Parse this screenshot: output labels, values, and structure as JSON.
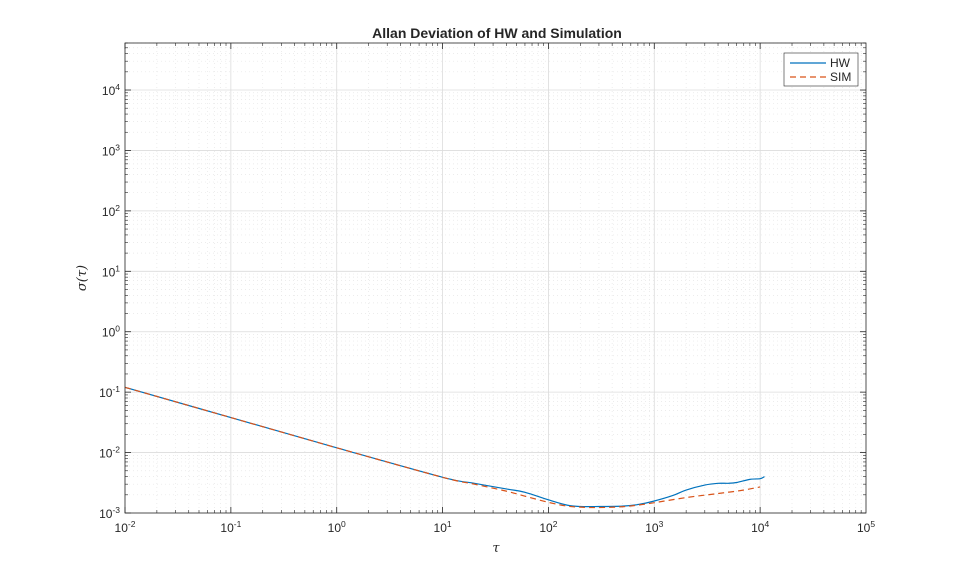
{
  "chart_data": {
    "type": "line",
    "title": "Allan Deviation of HW and Simulation",
    "xlabel": "τ",
    "ylabel": "σ(τ)",
    "xscale": "log",
    "yscale": "log",
    "xlim": [
      0.01,
      100000
    ],
    "ylim": [
      0.001,
      60000
    ],
    "grid": true,
    "minor_grid": true,
    "legend_position": "top-right",
    "x_ticks": [
      {
        "base": "10",
        "exp": "-2",
        "value": 0.01
      },
      {
        "base": "10",
        "exp": "-1",
        "value": 0.1
      },
      {
        "base": "10",
        "exp": "0",
        "value": 1
      },
      {
        "base": "10",
        "exp": "1",
        "value": 10
      },
      {
        "base": "10",
        "exp": "2",
        "value": 100
      },
      {
        "base": "10",
        "exp": "3",
        "value": 1000
      },
      {
        "base": "10",
        "exp": "4",
        "value": 10000
      },
      {
        "base": "10",
        "exp": "5",
        "value": 100000
      }
    ],
    "y_ticks": [
      {
        "base": "10",
        "exp": "-3",
        "value": 0.001
      },
      {
        "base": "10",
        "exp": "-2",
        "value": 0.01
      },
      {
        "base": "10",
        "exp": "-1",
        "value": 0.1
      },
      {
        "base": "10",
        "exp": "0",
        "value": 1
      },
      {
        "base": "10",
        "exp": "1",
        "value": 10
      },
      {
        "base": "10",
        "exp": "2",
        "value": 100
      },
      {
        "base": "10",
        "exp": "3",
        "value": 1000
      },
      {
        "base": "10",
        "exp": "4",
        "value": 10000
      }
    ],
    "series": [
      {
        "name": "HW",
        "color": "#0072BD",
        "dash": "solid",
        "x": [
          0.01,
          0.1,
          1,
          10,
          20,
          40,
          60,
          100,
          150,
          200,
          300,
          500,
          700,
          1000,
          1500,
          2000,
          3000,
          4000,
          5000,
          6000,
          8000,
          10000,
          11000
        ],
        "y": [
          0.12,
          0.038,
          0.012,
          0.0039,
          0.0031,
          0.0025,
          0.0022,
          0.00165,
          0.00135,
          0.00128,
          0.00128,
          0.0013,
          0.00138,
          0.00158,
          0.00195,
          0.0024,
          0.0029,
          0.0031,
          0.0031,
          0.0032,
          0.0036,
          0.0037,
          0.004
        ]
      },
      {
        "name": "SIM",
        "color": "#D95319",
        "dash": "dashed",
        "x": [
          0.01,
          0.1,
          1,
          10,
          20,
          40,
          60,
          100,
          150,
          200,
          300,
          500,
          700,
          1000,
          2000,
          4000,
          6000,
          8000,
          10000
        ],
        "y": [
          0.12,
          0.038,
          0.012,
          0.0039,
          0.003,
          0.0023,
          0.0019,
          0.0015,
          0.0013,
          0.00125,
          0.00123,
          0.00127,
          0.00135,
          0.00148,
          0.0018,
          0.0021,
          0.0023,
          0.0025,
          0.0027
        ]
      }
    ]
  }
}
